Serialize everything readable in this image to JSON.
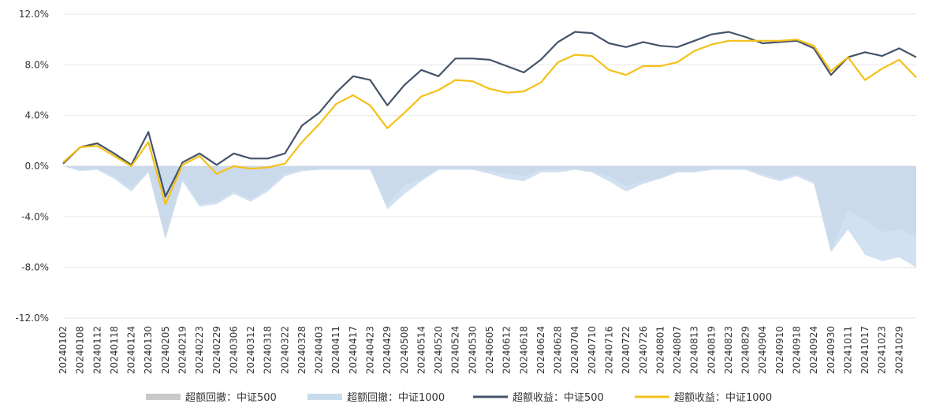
{
  "chart_data": {
    "type": "line",
    "title": "",
    "xlabel": "",
    "ylabel": "",
    "ylim": [
      -0.12,
      0.12
    ],
    "yticks": [
      "12.0%",
      "8.0%",
      "4.0%",
      "0.0%",
      "-4.0%",
      "-8.0%",
      "-12.0%"
    ],
    "categories": [
      "20240102",
      "20240108",
      "20240112",
      "20240118",
      "20240124",
      "20240130",
      "20240205",
      "20240219",
      "20240223",
      "20240229",
      "20240306",
      "20240312",
      "20240318",
      "20240322",
      "20240328",
      "20240403",
      "20240411",
      "20240417",
      "20240423",
      "20240429",
      "20240508",
      "20240514",
      "20240520",
      "20240524",
      "20240530",
      "20240605",
      "20240612",
      "20240618",
      "20240624",
      "20240628",
      "20240704",
      "20240710",
      "20240716",
      "20240722",
      "20240726",
      "20240801",
      "20240807",
      "20240813",
      "20240819",
      "20240823",
      "20240829",
      "20240904",
      "20240910",
      "20240918",
      "20240924",
      "20240930",
      "20241011",
      "20241017",
      "20241023",
      "20241029",
      "20241104"
    ],
    "legend_position": "bottom",
    "series": [
      {
        "name": "超额回撤：中证500",
        "kind": "area",
        "color": "#c9c9c9",
        "values": [
          0,
          -0.003,
          -0.002,
          -0.008,
          -0.018,
          -0.004,
          -0.056,
          -0.01,
          -0.03,
          -0.028,
          -0.02,
          -0.026,
          -0.018,
          -0.006,
          -0.003,
          -0.002,
          -0.002,
          -0.002,
          -0.002,
          -0.03,
          -0.015,
          -0.01,
          -0.002,
          -0.002,
          -0.002,
          -0.004,
          -0.006,
          -0.008,
          -0.003,
          -0.003,
          -0.002,
          -0.004,
          -0.008,
          -0.016,
          -0.012,
          -0.009,
          -0.004,
          -0.004,
          -0.002,
          -0.002,
          -0.002,
          -0.006,
          -0.01,
          -0.006,
          -0.012,
          -0.067,
          -0.035,
          -0.042,
          -0.052,
          -0.05,
          -0.055
        ]
      },
      {
        "name": "超额回撤：中证1000",
        "kind": "area",
        "color": "#c9dcee",
        "values": [
          0,
          -0.004,
          -0.003,
          -0.01,
          -0.02,
          -0.005,
          -0.058,
          -0.012,
          -0.032,
          -0.03,
          -0.022,
          -0.028,
          -0.02,
          -0.008,
          -0.004,
          -0.003,
          -0.003,
          -0.003,
          -0.003,
          -0.034,
          -0.022,
          -0.012,
          -0.003,
          -0.003,
          -0.003,
          -0.006,
          -0.01,
          -0.012,
          -0.005,
          -0.005,
          -0.003,
          -0.005,
          -0.012,
          -0.02,
          -0.014,
          -0.01,
          -0.005,
          -0.005,
          -0.003,
          -0.003,
          -0.003,
          -0.008,
          -0.012,
          -0.008,
          -0.014,
          -0.068,
          -0.05,
          -0.07,
          -0.075,
          -0.072,
          -0.08
        ]
      },
      {
        "name": "超额收益：中证500",
        "kind": "line",
        "color": "#44546a",
        "values": [
          0.002,
          0.015,
          0.018,
          0.01,
          0.001,
          0.027,
          -0.024,
          0.003,
          0.01,
          0.001,
          0.01,
          0.006,
          0.006,
          0.01,
          0.032,
          0.042,
          0.058,
          0.071,
          0.068,
          0.048,
          0.064,
          0.076,
          0.071,
          0.085,
          0.085,
          0.084,
          0.079,
          0.074,
          0.084,
          0.098,
          0.106,
          0.105,
          0.097,
          0.094,
          0.098,
          0.095,
          0.094,
          0.099,
          0.104,
          0.106,
          0.102,
          0.097,
          0.098,
          0.099,
          0.093,
          0.072,
          0.086,
          0.09,
          0.087,
          0.093,
          0.086
        ]
      },
      {
        "name": "超额收益：中证1000",
        "kind": "line",
        "color": "#f5c017",
        "values": [
          0.003,
          0.015,
          0.016,
          0.008,
          0,
          0.019,
          -0.03,
          0.001,
          0.008,
          -0.006,
          0,
          -0.002,
          -0.001,
          0.002,
          0.019,
          0.033,
          0.049,
          0.056,
          0.048,
          0.03,
          0.042,
          0.055,
          0.06,
          0.068,
          0.067,
          0.061,
          0.058,
          0.059,
          0.066,
          0.082,
          0.088,
          0.087,
          0.076,
          0.072,
          0.079,
          0.079,
          0.082,
          0.091,
          0.096,
          0.099,
          0.099,
          0.099,
          0.099,
          0.1,
          0.095,
          0.075,
          0.086,
          0.068,
          0.077,
          0.084,
          0.07
        ]
      }
    ]
  }
}
